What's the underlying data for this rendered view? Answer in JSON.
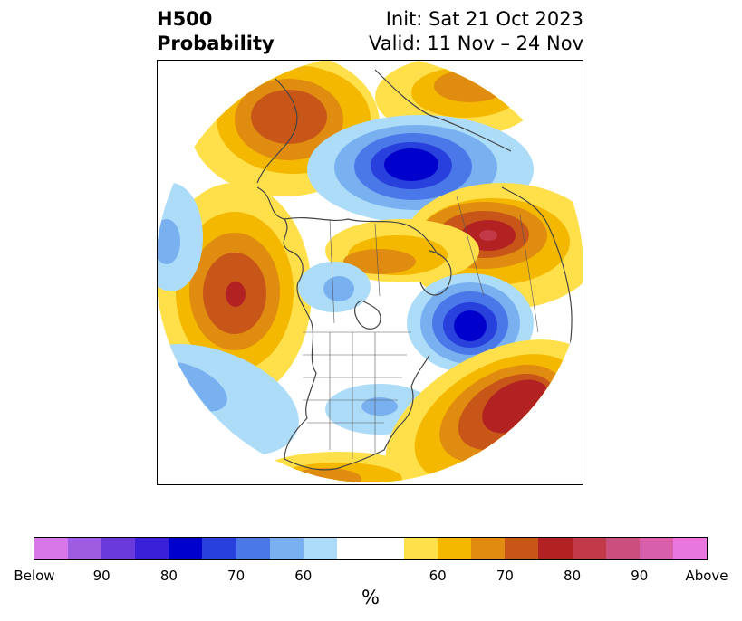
{
  "title": {
    "left_line1": "H500",
    "left_line2": "Probability",
    "right_line1": "Init: Sat 21 Oct 2023",
    "right_line2": "Valid: 11 Nov – 24 Nov"
  },
  "colorbar": {
    "unit_label": "%",
    "colors": [
      "#d878e8",
      "#9e5ce0",
      "#6a3adc",
      "#3a1fd8",
      "#0000cc",
      "#2840dc",
      "#4a78e8",
      "#78b0f0",
      "#acdcf8",
      "#ffffff",
      "#ffe04a",
      "#f4b800",
      "#e08c10",
      "#c85618",
      "#b22222",
      "#c23a4a",
      "#cc4e7e",
      "#d860aa",
      "#e878e0"
    ],
    "tick_labels": [
      "Below",
      "90",
      "80",
      "70",
      "60",
      "60",
      "70",
      "80",
      "90",
      "Above"
    ]
  }
}
